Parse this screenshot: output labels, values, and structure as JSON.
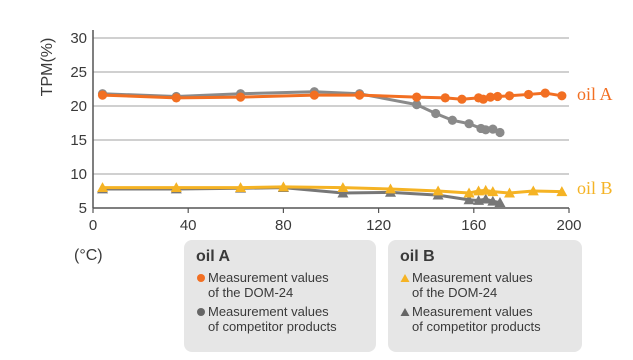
{
  "chart_data": {
    "type": "line",
    "ylabel": "TPM(%)",
    "xunit": "(°C)",
    "xlim": [
      0,
      200
    ],
    "ylim": [
      5,
      30
    ],
    "xticks": [
      0,
      40,
      80,
      120,
      160,
      200
    ],
    "yticks": [
      5,
      10,
      15,
      20,
      25,
      30
    ],
    "grid": true,
    "series": [
      {
        "group": "oil A",
        "kind": "dom",
        "color": "#f26f22",
        "marker": "circle",
        "x": [
          4,
          35,
          62,
          93,
          112,
          136,
          148,
          155,
          162,
          164,
          167,
          170,
          175,
          183,
          190,
          197
        ],
        "y": [
          21.6,
          21.2,
          21.3,
          21.6,
          21.6,
          21.3,
          21.2,
          21.0,
          21.2,
          21.0,
          21.3,
          21.4,
          21.5,
          21.7,
          21.9,
          21.5
        ]
      },
      {
        "group": "oil A",
        "kind": "competitor",
        "color": "#8a8a8a",
        "marker": "circle",
        "x": [
          4,
          35,
          62,
          93,
          112,
          136,
          144,
          151,
          158,
          163,
          165,
          168,
          171
        ],
        "y": [
          21.8,
          21.4,
          21.8,
          22.1,
          21.8,
          20.2,
          18.9,
          17.9,
          17.4,
          16.7,
          16.5,
          16.6,
          16.1
        ]
      },
      {
        "group": "oil B",
        "kind": "dom",
        "color": "#f5b324",
        "marker": "triangle",
        "x": [
          4,
          35,
          62,
          80,
          105,
          125,
          145,
          158,
          162,
          165,
          168,
          175,
          185,
          197
        ],
        "y": [
          8.0,
          8.0,
          8.0,
          8.1,
          8.0,
          7.8,
          7.5,
          7.2,
          7.5,
          7.6,
          7.4,
          7.2,
          7.5,
          7.4
        ]
      },
      {
        "group": "oil B",
        "kind": "competitor",
        "color": "#777777",
        "marker": "triangle",
        "x": [
          4,
          35,
          62,
          80,
          105,
          125,
          145,
          158,
          162,
          165,
          168,
          171
        ],
        "y": [
          7.8,
          7.8,
          7.9,
          8.0,
          7.2,
          7.3,
          6.9,
          6.2,
          6.1,
          6.3,
          6.0,
          5.8
        ]
      }
    ],
    "series_labels": [
      {
        "text": "oil A",
        "color": "#f26f22"
      },
      {
        "text": "oil B",
        "color": "#f5b324"
      }
    ]
  },
  "legend": {
    "oil_a": {
      "title": "oil A",
      "entries": [
        {
          "text": "Measurement values\nof the DOM-24",
          "color": "#f26f22",
          "marker": "circle"
        },
        {
          "text": "Measurement values\nof competitor products",
          "color": "#666666",
          "marker": "circle"
        }
      ]
    },
    "oil_b": {
      "title": "oil B",
      "entries": [
        {
          "text": "Measurement values\nof the DOM-24",
          "color": "#f5b324",
          "marker": "triangle"
        },
        {
          "text": "Measurement values\nof competitor products",
          "color": "#666666",
          "marker": "triangle"
        }
      ]
    }
  }
}
